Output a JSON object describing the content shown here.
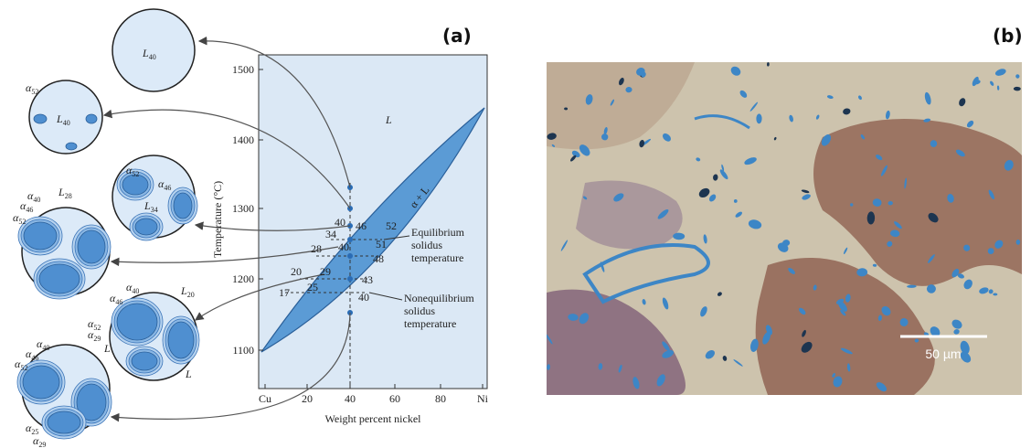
{
  "panel_a": {
    "label": "(a)",
    "diagram": {
      "y_axis_label": "Temperature (°C)",
      "x_axis_label": "Weight percent nickel",
      "y_ticks": [
        "1500",
        "1400",
        "1300",
        "1200",
        "1100"
      ],
      "x_ticks": [
        "Cu",
        "20",
        "40",
        "60",
        "80",
        "Ni"
      ],
      "region_liquid": "L",
      "region_two_phase": "α + L",
      "compositions": [
        "40",
        "46",
        "52",
        "34",
        "40",
        "51",
        "28",
        "48",
        "20",
        "29",
        "43",
        "17",
        "25",
        "40"
      ],
      "notes": [
        [
          "Equilibrium",
          "solidus",
          "temperature"
        ],
        [
          "Nonequilibrium",
          "solidus",
          "temperature"
        ]
      ]
    },
    "microstructures": [
      {
        "labels": [
          {
            "base": "L",
            "sub": "40"
          }
        ]
      },
      {
        "labels": [
          {
            "base": "α",
            "sub": "52"
          },
          {
            "base": "L",
            "sub": "40"
          }
        ]
      },
      {
        "labels": [
          {
            "base": "α",
            "sub": "52"
          },
          {
            "base": "α",
            "sub": "46"
          },
          {
            "base": "L",
            "sub": "34"
          }
        ]
      },
      {
        "labels": [
          {
            "base": "α",
            "sub": "40"
          },
          {
            "base": "α",
            "sub": "46"
          },
          {
            "base": "α",
            "sub": "52"
          },
          {
            "base": "L",
            "sub": "28"
          }
        ]
      },
      {
        "labels": [
          {
            "base": "α",
            "sub": "40"
          },
          {
            "base": "α",
            "sub": "46"
          },
          {
            "base": "α",
            "sub": "52"
          },
          {
            "base": "α",
            "sub": "29"
          },
          {
            "base": "L",
            "sub": "20"
          },
          {
            "base": "L",
            "sub": ""
          },
          {
            "base": "L",
            "sub": ""
          }
        ]
      },
      {
        "labels": [
          {
            "base": "α",
            "sub": "40"
          },
          {
            "base": "α",
            "sub": "46"
          },
          {
            "base": "α",
            "sub": "52"
          },
          {
            "base": "α",
            "sub": "25"
          },
          {
            "base": "α",
            "sub": "29"
          }
        ]
      }
    ]
  },
  "panel_b": {
    "label": "(b)",
    "scale_bar": "50 µm"
  }
}
